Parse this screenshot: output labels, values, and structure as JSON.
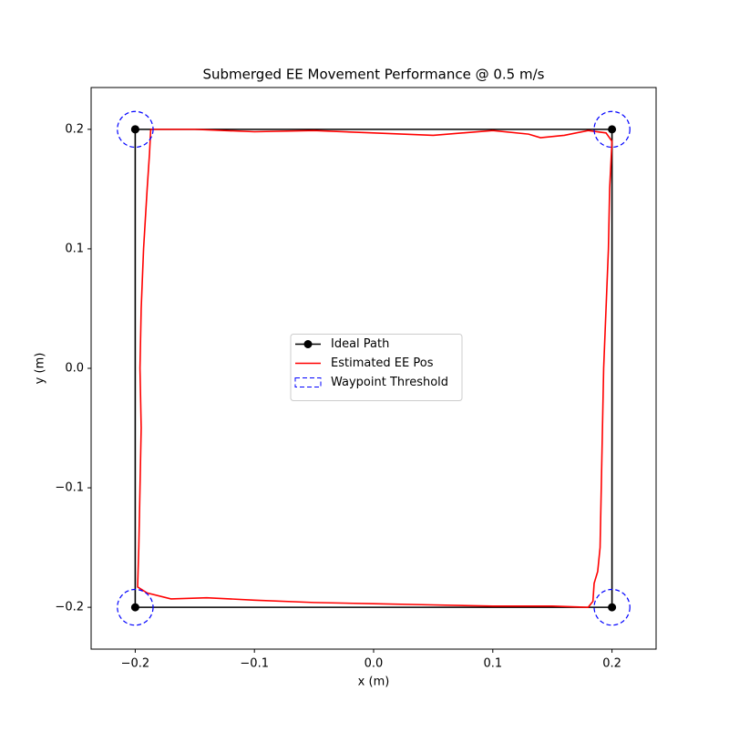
{
  "chart_data": {
    "type": "line",
    "title": "Submerged EE Movement Performance @ 0.5 m/s",
    "xlabel": "x (m)",
    "ylabel": "y (m)",
    "xlim": [
      -0.237,
      0.237
    ],
    "ylim": [
      -0.235,
      0.235
    ],
    "xticks": [
      {
        "value": -0.2,
        "label": "−0.2"
      },
      {
        "value": -0.1,
        "label": "−0.1"
      },
      {
        "value": 0,
        "label": "0.0"
      },
      {
        "value": 0.1,
        "label": "0.1"
      },
      {
        "value": 0.2,
        "label": "0.2"
      }
    ],
    "yticks": [
      {
        "value": -0.2,
        "label": "−0.2"
      },
      {
        "value": -0.1,
        "label": "−0.1"
      },
      {
        "value": 0,
        "label": "0.0"
      },
      {
        "value": 0.1,
        "label": "0.1"
      },
      {
        "value": 0.2,
        "label": "0.2"
      }
    ],
    "legend": "center",
    "series": [
      {
        "name": "Ideal Path",
        "color": "#000000",
        "marker": true,
        "x": [
          -0.2,
          0.2,
          0.2,
          -0.2,
          -0.2
        ],
        "y": [
          0.2,
          0.2,
          -0.2,
          -0.2,
          0.2
        ]
      },
      {
        "name": "Estimated EE Pos",
        "color": "#ff0000",
        "marker": false,
        "x": [
          -0.187,
          -0.15,
          -0.1,
          -0.05,
          0,
          0.05,
          0.1,
          0.13,
          0.14,
          0.16,
          0.18,
          0.195,
          0.2,
          0.198,
          0.197,
          0.195,
          0.193,
          0.192,
          0.191,
          0.19,
          0.188,
          0.185,
          0.184,
          0.18,
          0.15,
          0.1,
          0.05,
          0,
          -0.05,
          -0.1,
          -0.14,
          -0.17,
          -0.19,
          -0.198,
          -0.197,
          -0.196,
          -0.195,
          -0.196,
          -0.195,
          -0.193,
          -0.19,
          -0.188,
          -0.187
        ],
        "y": [
          0.2,
          0.2,
          0.198,
          0.199,
          0.197,
          0.195,
          0.199,
          0.196,
          0.193,
          0.195,
          0.199,
          0.197,
          0.19,
          0.15,
          0.1,
          0.05,
          0,
          -0.05,
          -0.1,
          -0.15,
          -0.17,
          -0.18,
          -0.195,
          -0.2,
          -0.199,
          -0.199,
          -0.198,
          -0.197,
          -0.196,
          -0.194,
          -0.192,
          -0.193,
          -0.188,
          -0.183,
          -0.15,
          -0.1,
          -0.05,
          0,
          0.05,
          0.1,
          0.15,
          0.18,
          0.2
        ]
      }
    ],
    "waypoints": {
      "name": "Waypoint Threshold",
      "color": "#0000ff",
      "radius": 0.015,
      "x": [
        -0.2,
        0.2,
        0.2,
        -0.2
      ],
      "y": [
        0.2,
        0.2,
        -0.2,
        -0.2
      ]
    }
  }
}
